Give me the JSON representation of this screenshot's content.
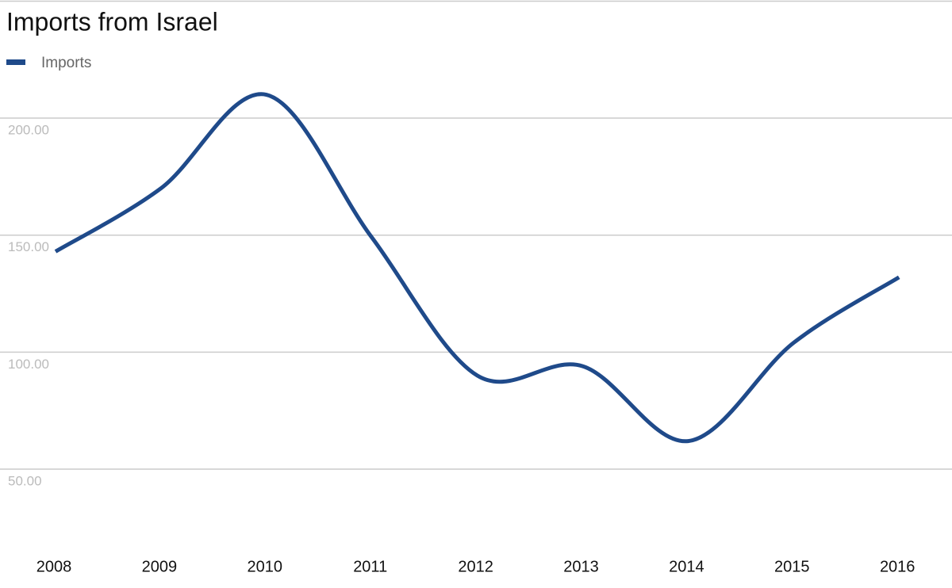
{
  "chart_data": {
    "type": "line",
    "title": "Imports from Israel",
    "categories": [
      "2008",
      "2009",
      "2010",
      "2011",
      "2012",
      "2013",
      "2014",
      "2015",
      "2016"
    ],
    "series": [
      {
        "name": "Imports",
        "color": "#1f4a8a",
        "values": [
          143,
          170,
          210,
          149,
          90,
          94,
          62,
          104,
          132
        ]
      }
    ],
    "ylim": [
      0,
      250
    ],
    "yticks": [
      {
        "value": 50,
        "label": "50.00"
      },
      {
        "value": 100,
        "label": "100.00"
      },
      {
        "value": 150,
        "label": "150.00"
      },
      {
        "value": 200,
        "label": "200.00"
      }
    ],
    "grid": true,
    "legend": "top-left"
  }
}
